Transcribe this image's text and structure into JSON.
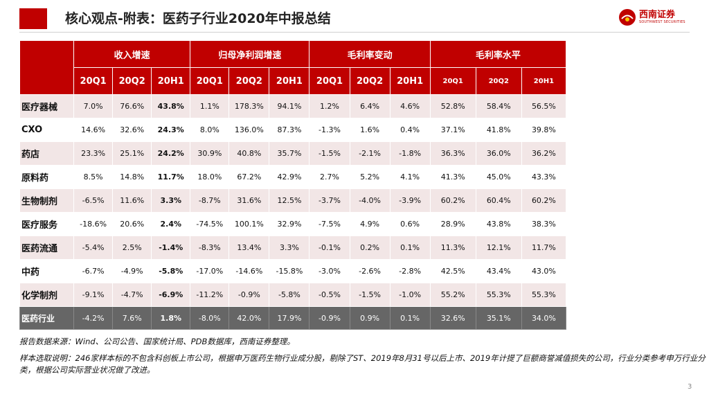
{
  "header": {
    "title": "核心观点-附表：医药子行业2020年中报总结"
  },
  "logo": {
    "name": "西南证券",
    "sub": "SOUTHWEST SECURITIES"
  },
  "table": {
    "groups": [
      "收入增速",
      "归母净利润增速",
      "毛利率变动",
      "毛利率水平"
    ],
    "periods": [
      "20Q1",
      "20Q2",
      "20H1"
    ],
    "rows": [
      {
        "name": "医疗器械",
        "values": [
          "7.0%",
          "76.6%",
          "43.8%",
          "1.1%",
          "178.3%",
          "94.1%",
          "1.2%",
          "6.4%",
          "4.6%",
          "52.8%",
          "58.4%",
          "56.5%"
        ]
      },
      {
        "name": "CXO",
        "values": [
          "14.6%",
          "32.6%",
          "24.3%",
          "8.0%",
          "136.0%",
          "87.3%",
          "-1.3%",
          "1.6%",
          "0.4%",
          "37.1%",
          "41.8%",
          "39.8%"
        ]
      },
      {
        "name": "药店",
        "values": [
          "23.3%",
          "25.1%",
          "24.2%",
          "30.9%",
          "40.8%",
          "35.7%",
          "-1.5%",
          "-2.1%",
          "-1.8%",
          "36.3%",
          "36.0%",
          "36.2%"
        ]
      },
      {
        "name": "原料药",
        "values": [
          "8.5%",
          "14.8%",
          "11.7%",
          "18.0%",
          "67.2%",
          "42.9%",
          "2.7%",
          "5.2%",
          "4.1%",
          "41.3%",
          "45.0%",
          "43.3%"
        ]
      },
      {
        "name": "生物制剂",
        "values": [
          "-6.5%",
          "11.6%",
          "3.3%",
          "-8.7%",
          "31.6%",
          "12.5%",
          "-3.7%",
          "-4.0%",
          "-3.9%",
          "60.2%",
          "60.4%",
          "60.2%"
        ]
      },
      {
        "name": "医疗服务",
        "values": [
          "-18.6%",
          "20.6%",
          "2.4%",
          "-74.5%",
          "100.1%",
          "32.9%",
          "-7.5%",
          "4.9%",
          "0.6%",
          "28.9%",
          "43.8%",
          "38.3%"
        ]
      },
      {
        "name": "医药流通",
        "values": [
          "-5.4%",
          "2.5%",
          "-1.4%",
          "-8.3%",
          "13.4%",
          "3.3%",
          "-0.1%",
          "0.2%",
          "0.1%",
          "11.3%",
          "12.1%",
          "11.7%"
        ]
      },
      {
        "name": "中药",
        "values": [
          "-6.7%",
          "-4.9%",
          "-5.8%",
          "-17.0%",
          "-14.6%",
          "-15.8%",
          "-3.0%",
          "-2.6%",
          "-2.8%",
          "42.5%",
          "43.4%",
          "43.0%"
        ]
      },
      {
        "name": "化学制剂",
        "values": [
          "-9.1%",
          "-4.7%",
          "-6.9%",
          "-11.2%",
          "-0.9%",
          "-5.8%",
          "-0.5%",
          "-1.5%",
          "-1.0%",
          "55.2%",
          "55.3%",
          "55.3%"
        ]
      }
    ],
    "total": {
      "name": "医药行业",
      "values": [
        "-4.2%",
        "7.6%",
        "1.8%",
        "-8.0%",
        "42.0%",
        "17.9%",
        "-0.9%",
        "0.9%",
        "0.1%",
        "32.6%",
        "35.1%",
        "34.0%"
      ]
    }
  },
  "notes": {
    "source": "报告数据来源：Wind、公司公告、国家统计局、PDB数据库，西南证券整理。",
    "sample": "样本选取说明：246家样本标的不包含科创板上市公司，根据申万医药生物行业成分股，剔除了ST、2019年8月31号以后上市、2019年计提了巨额商誉减值损失的公司，行业分类参考申万行业分类，根据公司实际营业状况做了改进。"
  },
  "page_number": "3"
}
